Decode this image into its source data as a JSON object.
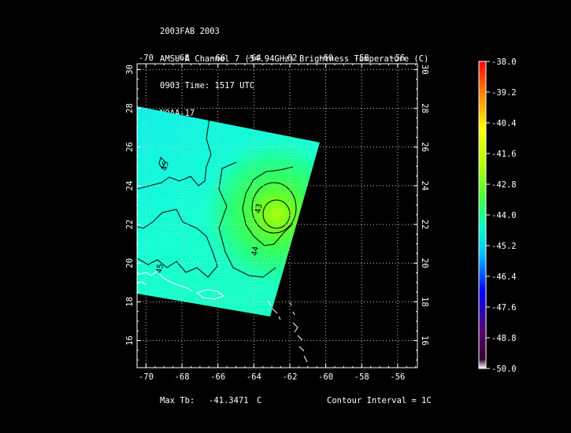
{
  "header": {
    "line1": "2003FAB 2003",
    "line2": "AMSU-A Channel 7 (54.94GHz) Brightness Temperature (C)",
    "line3": "0903 Time: 1517 UTC",
    "line4": "NOAA-17"
  },
  "footer": {
    "max_tb_label": "Max Tb:",
    "max_tb_value": "-41.3471",
    "max_tb_unit": "C",
    "contour_interval": "Contour Interval = 1C"
  },
  "chart_data": {
    "type": "heatmap",
    "title": "AMSU-A Channel 7 (54.94GHz) Brightness Temperature (C)",
    "x_ticks": [
      -70,
      -68,
      -66,
      -64,
      -62,
      -60,
      -58,
      -56
    ],
    "x_tick_labels": [
      "-70",
      "-68",
      "-66",
      "-64",
      "-62",
      "-60",
      "-58",
      "-56"
    ],
    "y_ticks": [
      16,
      18,
      20,
      22,
      24,
      26,
      28,
      30
    ],
    "y_tick_labels": [
      "16",
      "18",
      "20",
      "22",
      "24",
      "26",
      "28",
      "30"
    ],
    "xlim": [
      -70.5,
      -54.9
    ],
    "ylim": [
      14.6,
      30.3
    ],
    "grid": true,
    "swath_corners_lonlat": [
      [
        -70.5,
        28.1
      ],
      [
        -60.2,
        26.4
      ],
      [
        -62.4,
        16.8
      ],
      [
        -70.5,
        18.3
      ]
    ],
    "warm_core": {
      "lon": -62.9,
      "lat": 22.5,
      "value": -41.3471
    },
    "background_value": -45.2,
    "contour_labels": [
      {
        "text": "45",
        "lon": -68.8,
        "lat": 25.0
      },
      {
        "text": "43",
        "lon": -63.6,
        "lat": 22.8
      },
      {
        "text": "44",
        "lon": -63.8,
        "lat": 20.6
      },
      {
        "text": "45",
        "lon": -69.1,
        "lat": 19.7
      }
    ],
    "colorbar": {
      "min": -50.0,
      "max": -38.0,
      "tick_values": [
        -38.0,
        -39.2,
        -40.4,
        -41.6,
        -42.8,
        -44.0,
        -45.2,
        -46.4,
        -47.6,
        -48.8,
        -50.0
      ],
      "tick_labels": [
        "-38.0",
        "-39.2",
        "-40.4",
        "-41.6",
        "-42.8",
        "-44.0",
        "-45.2",
        "-46.4",
        "-47.6",
        "-48.8",
        "-50.0"
      ],
      "colors": [
        "#ffffff",
        "#300030",
        "#5a006e",
        "#0000ff",
        "#00c0ff",
        "#00ffc8",
        "#40ff40",
        "#b0ff00",
        "#ffff00",
        "#ff8000",
        "#ff0000"
      ]
    }
  }
}
